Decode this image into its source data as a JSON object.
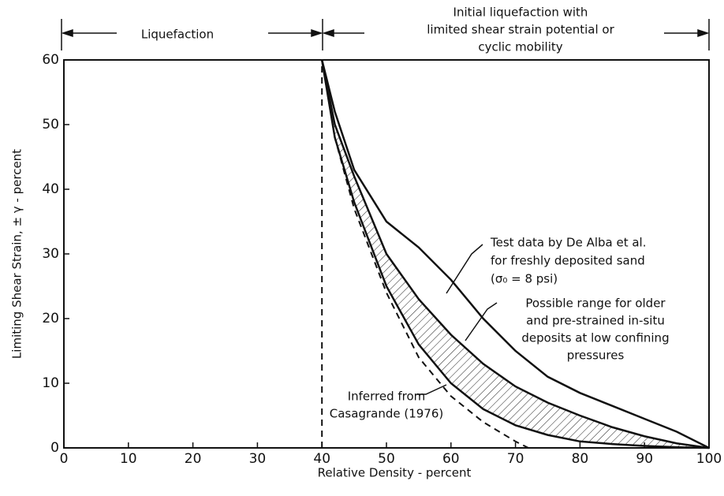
{
  "chart_data": {
    "type": "line",
    "x_label": "Relative Density - percent",
    "y_label": "Limiting Shear Strain, ± γ - percent",
    "xlim": [
      0,
      100
    ],
    "xticks": [
      0,
      10,
      20,
      30,
      40,
      50,
      60,
      70,
      80,
      90,
      100
    ],
    "ylim": [
      0,
      60
    ],
    "yticks": [
      0,
      10,
      20,
      30,
      40,
      50,
      60
    ],
    "grid": false,
    "series": [
      {
        "color": "#111111",
        "dash": false,
        "x": [
          40,
          42,
          45,
          50,
          55,
          60,
          65,
          70,
          75,
          80,
          85,
          90,
          95,
          100
        ],
        "values": [
          60,
          52,
          43,
          35,
          31,
          26,
          20,
          15,
          11,
          8.5,
          6.5,
          4.5,
          2.5,
          0
        ]
      },
      {
        "color": "#111111",
        "dash": false,
        "x": [
          40,
          42,
          45,
          50,
          55,
          60,
          65,
          70,
          75,
          80,
          85,
          90,
          95,
          100
        ],
        "values": [
          60,
          50,
          42,
          30,
          23,
          17.5,
          13,
          9.5,
          7,
          5,
          3.2,
          1.8,
          0.7,
          0
        ]
      },
      {
        "color": "#111111",
        "dash": false,
        "fill": "hatch",
        "x": [
          40,
          42,
          45,
          50,
          55,
          60,
          65,
          70,
          75,
          80,
          85,
          90,
          95,
          100
        ],
        "values": [
          60,
          48,
          38,
          25,
          16,
          10,
          6,
          3.5,
          2,
          1,
          0.6,
          0.3,
          0.1,
          0
        ]
      },
      {
        "color": "#111111",
        "dash": true,
        "x": [
          40,
          42,
          45,
          50,
          55,
          60,
          65,
          70,
          72
        ],
        "values": [
          60,
          48,
          37,
          24,
          14,
          8,
          4,
          1,
          0
        ]
      },
      {
        "color": "#111111",
        "dash": true,
        "x": [
          40,
          40
        ],
        "values": [
          0,
          60
        ]
      }
    ],
    "annotations": [
      {
        "lines": [
          "Liquefaction"
        ]
      },
      {
        "lines": [
          "Initial liquefaction with",
          "limited shear strain potential or",
          "cyclic mobility"
        ]
      },
      {
        "lines": [
          "Test data by De Alba et al.",
          "for freshly deposited sand",
          "(σ₀ = 8 psi)"
        ]
      },
      {
        "lines": [
          "Possible range for older",
          "and pre-strained in-situ",
          "deposits at low confining",
          "pressures"
        ]
      },
      {
        "lines": [
          "Inferred from",
          "Casagrande (1976)"
        ]
      }
    ]
  }
}
